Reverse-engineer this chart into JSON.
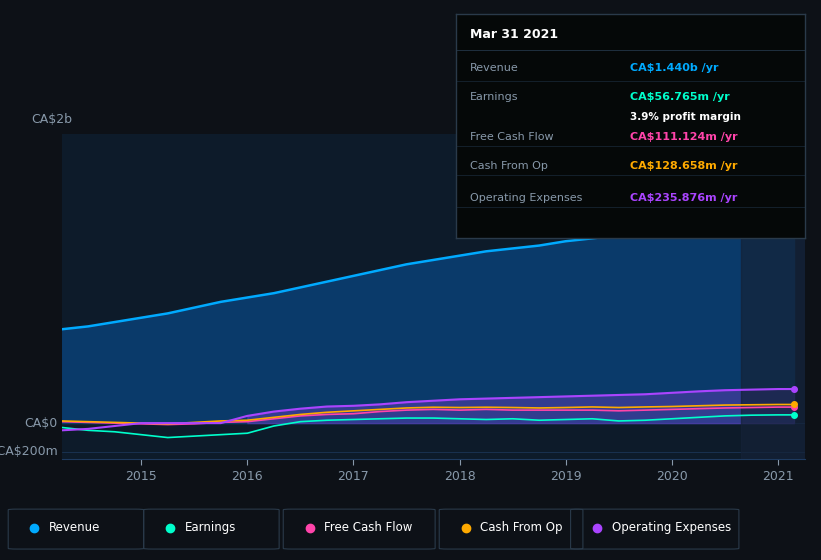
{
  "bg_color": "#0d1117",
  "plot_bg_color": "#0d1b2a",
  "grid_color": "#1e3a5f",
  "text_color": "#8899aa",
  "title_color": "#ffffff",
  "years": [
    2014.25,
    2014.5,
    2014.75,
    2015.0,
    2015.25,
    2015.5,
    2015.75,
    2016.0,
    2016.25,
    2016.5,
    2016.75,
    2017.0,
    2017.25,
    2017.5,
    2017.75,
    2018.0,
    2018.25,
    2018.5,
    2018.75,
    2019.0,
    2019.25,
    2019.5,
    2019.75,
    2020.0,
    2020.25,
    2020.5,
    2020.75,
    2021.0,
    2021.15
  ],
  "revenue": [
    650,
    670,
    700,
    730,
    760,
    800,
    840,
    870,
    900,
    940,
    980,
    1020,
    1060,
    1100,
    1130,
    1160,
    1190,
    1210,
    1230,
    1260,
    1280,
    1300,
    1310,
    1330,
    1360,
    1390,
    1410,
    1440,
    1445
  ],
  "earnings": [
    -30,
    -50,
    -60,
    -80,
    -100,
    -90,
    -80,
    -70,
    -20,
    10,
    20,
    25,
    30,
    35,
    35,
    30,
    25,
    30,
    20,
    25,
    30,
    15,
    20,
    30,
    40,
    50,
    55,
    57,
    57
  ],
  "free_cash_flow": [
    10,
    5,
    0,
    -5,
    -10,
    -5,
    5,
    10,
    30,
    50,
    60,
    65,
    80,
    90,
    95,
    90,
    95,
    90,
    90,
    90,
    90,
    85,
    90,
    95,
    100,
    105,
    108,
    111,
    111
  ],
  "cash_from_op": [
    15,
    10,
    5,
    0,
    -5,
    5,
    15,
    20,
    40,
    60,
    75,
    85,
    95,
    105,
    110,
    108,
    110,
    108,
    105,
    108,
    112,
    108,
    112,
    115,
    120,
    125,
    127,
    129,
    129
  ],
  "operating_expenses": [
    -50,
    -40,
    -20,
    0,
    0,
    0,
    0,
    50,
    80,
    100,
    115,
    120,
    130,
    145,
    155,
    165,
    170,
    175,
    180,
    185,
    190,
    195,
    200,
    210,
    220,
    228,
    232,
    236,
    236
  ],
  "revenue_color": "#00aaff",
  "earnings_color": "#00ffcc",
  "free_cash_flow_color": "#ff44aa",
  "cash_from_op_color": "#ffaa00",
  "operating_expenses_color": "#aa44ff",
  "revenue_fill": "#0a3a6a",
  "ylim_min": -250,
  "ylim_max": 2000,
  "xticks": [
    2015,
    2016,
    2017,
    2018,
    2019,
    2020,
    2021
  ],
  "tooltip_date": "Mar 31 2021",
  "tooltip_revenue_label": "Revenue",
  "tooltip_revenue_value": "CA$1.440b /yr",
  "tooltip_earnings_label": "Earnings",
  "tooltip_earnings_value": "CA$56.765m /yr",
  "tooltip_margin": "3.9% profit margin",
  "tooltip_fcf_label": "Free Cash Flow",
  "tooltip_fcf_value": "CA$111.124m /yr",
  "tooltip_cashop_label": "Cash From Op",
  "tooltip_cashop_value": "CA$128.658m /yr",
  "tooltip_opex_label": "Operating Expenses",
  "tooltip_opex_value": "CA$235.876m /yr"
}
